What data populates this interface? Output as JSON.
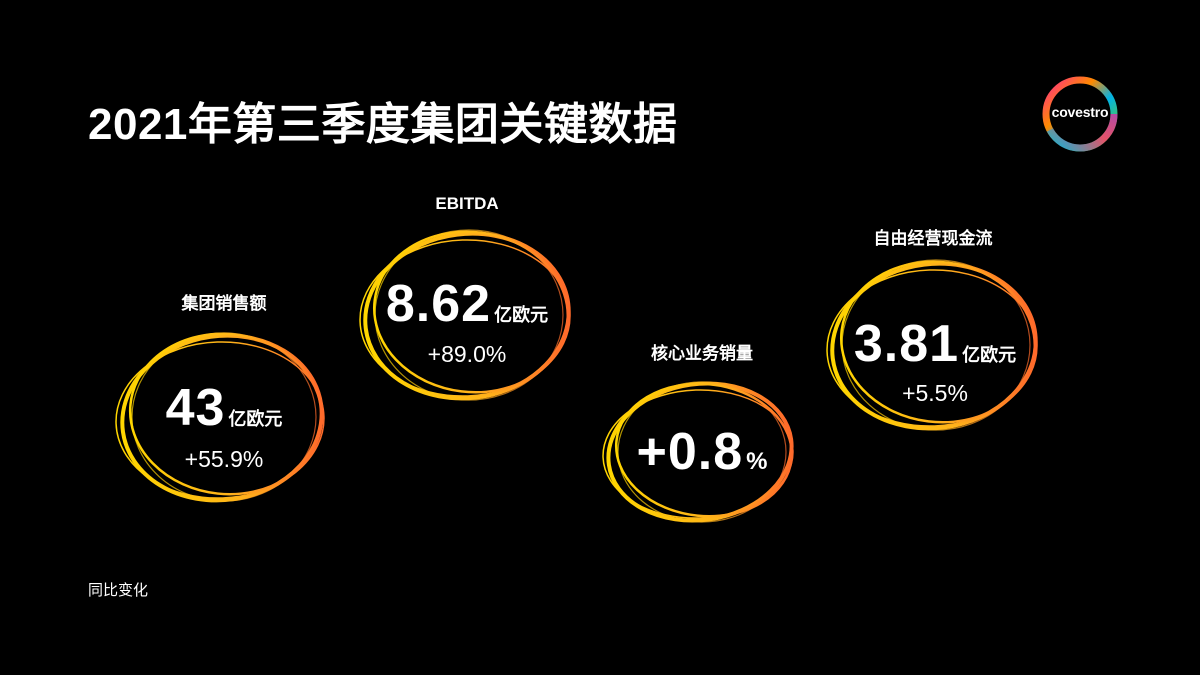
{
  "slide": {
    "title": "2021年第三季度集团关键数据",
    "footnote": "同比变化",
    "logo_text": "covestro"
  },
  "kpis": [
    {
      "label": "集团销售额",
      "value": "43",
      "unit": "亿欧元",
      "change": "+55.9%"
    },
    {
      "label": "EBITDA",
      "value": "8.62",
      "unit": "亿欧元",
      "change": "+89.0%"
    },
    {
      "label": "核心业务销量",
      "value": "+0.8",
      "unit": "%",
      "change": ""
    },
    {
      "label": "自由经营现金流",
      "value": "3.81",
      "unit": "亿欧元",
      "change": "+5.5%"
    }
  ],
  "colors": {
    "background": "#000000",
    "ring_start": "#ffd600",
    "ring_end": "#ff6a2b"
  }
}
